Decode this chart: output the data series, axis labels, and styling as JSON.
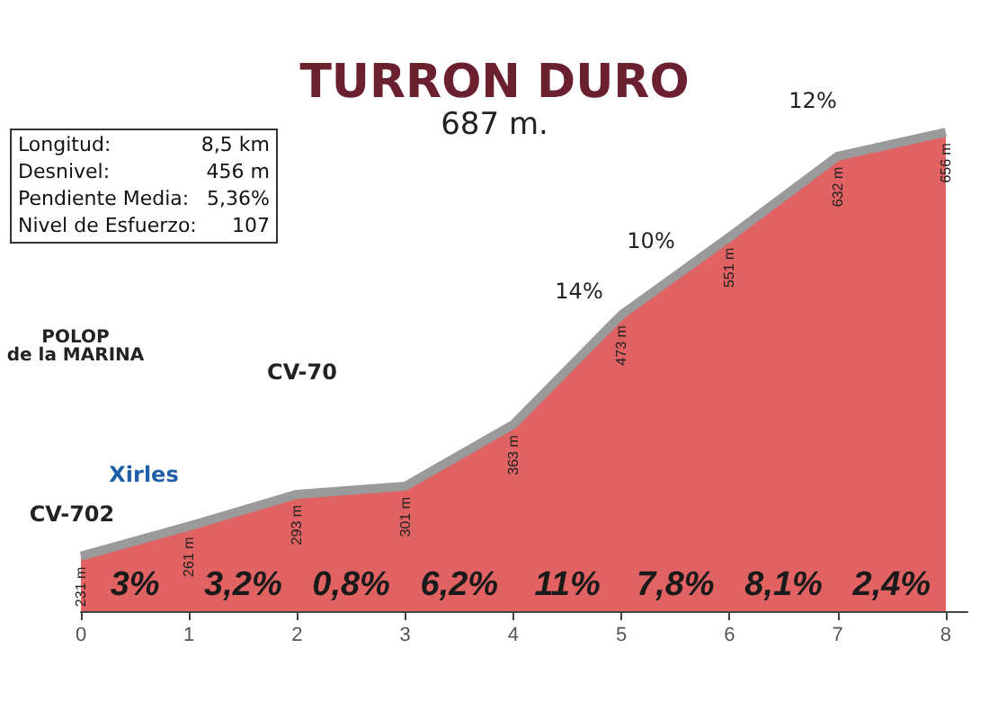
{
  "chart_data": {
    "type": "area",
    "title": "TURRON DURO",
    "subtitle": "687 m.",
    "x": [
      0,
      1,
      2,
      3,
      4,
      5,
      6,
      7,
      8
    ],
    "series": [
      {
        "color": "#e06262",
        "values": [
          231,
          261,
          293,
          301,
          363,
          473,
          551,
          632,
          656
        ],
        "value_labels": [
          "231 m",
          "261 m",
          "293 m",
          "301 m",
          "363 m",
          "473 m",
          "551 m",
          "632 m",
          "656 m"
        ]
      }
    ],
    "xlim": [
      0,
      8.2
    ],
    "xticks": [
      0,
      1,
      2,
      3,
      4,
      5,
      6,
      7,
      8
    ],
    "tick_labels": "x",
    "annotations": [
      "Longitud:",
      "8,5 km",
      "Desnivel:",
      "456 m",
      "Pendiente Media:",
      "5,36%",
      "Nivel de Esfuerzo:",
      "107",
      "POLOP de la MARINA",
      "CV-702",
      "Xirles",
      "CV-70",
      "14%",
      "10%",
      "12%",
      "3%",
      "3,2%",
      "0,8%",
      "6,2%",
      "11%",
      "7,8%",
      "8,1%",
      "2,4%"
    ]
  }
}
